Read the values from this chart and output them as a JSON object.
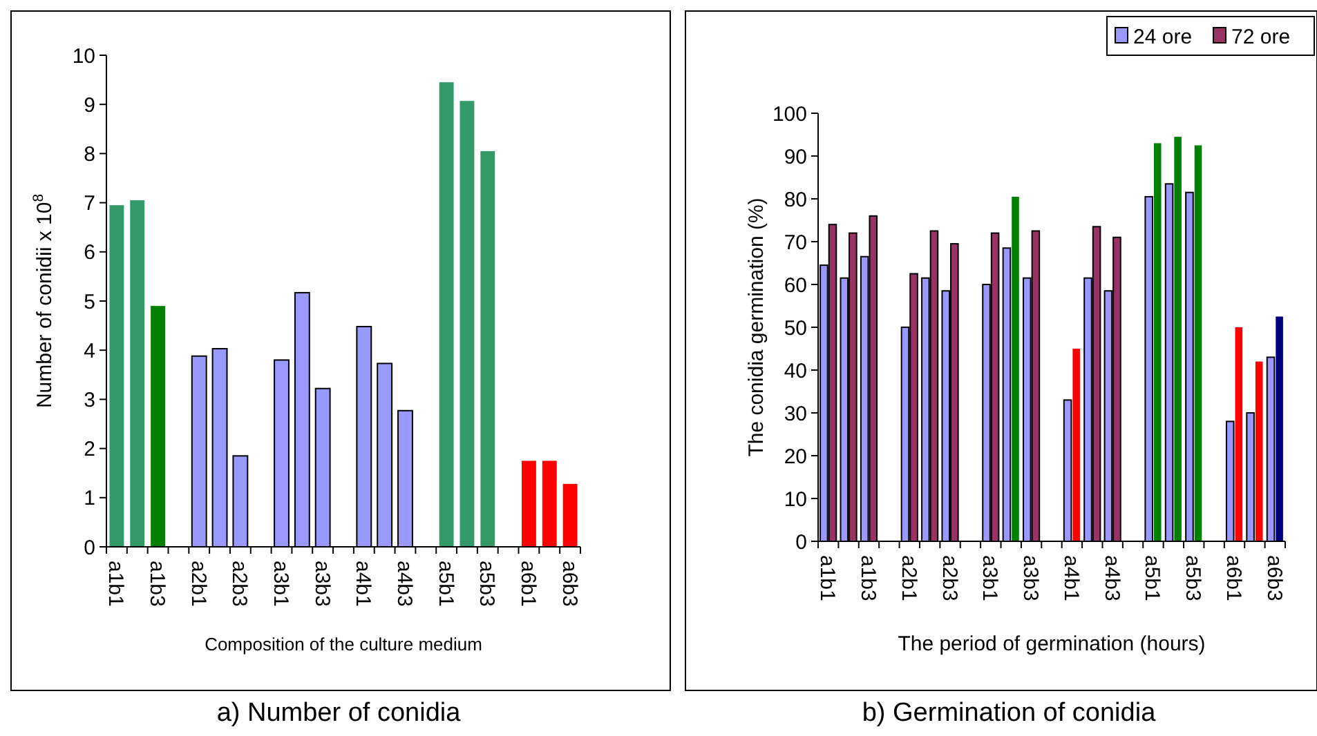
{
  "chart_data": [
    {
      "type": "bar",
      "title": "a) Number of conidia",
      "xlabel": "Composition of the culture medium",
      "ylabel": "Number of conidii x 10$^{8}$",
      "categories": [
        "a1b1",
        null,
        "a1b3",
        null,
        "a2b1",
        null,
        "a2b3",
        null,
        "a3b1",
        null,
        "a3b3",
        null,
        "a4b1",
        null,
        "a4b3",
        null,
        "a5b1",
        null,
        "a5b3",
        null,
        "a6b1",
        null,
        "a6b3"
      ],
      "values": [
        6.95,
        7.05,
        4.9,
        null,
        3.88,
        4.03,
        1.85,
        null,
        3.8,
        5.17,
        3.22,
        null,
        4.48,
        3.73,
        2.77,
        null,
        9.45,
        9.07,
        8.05,
        null,
        1.75,
        1.75,
        1.28
      ],
      "colors": [
        "#339966",
        "#339966",
        "#008000",
        null,
        "#9999ff",
        "#9999ff",
        "#9999ff",
        null,
        "#9999ff",
        "#9999ff",
        "#9999ff",
        null,
        "#9999ff",
        "#9999ff",
        "#9999ff",
        null,
        "#339966",
        "#339966",
        "#339966",
        null,
        "#ff0000",
        "#ff0000",
        "#ff0000"
      ],
      "ylim": [
        0,
        10
      ],
      "yticks": [
        0,
        1,
        2,
        3,
        4,
        5,
        6,
        7,
        8,
        9,
        10
      ],
      "grid": false,
      "legend": false
    },
    {
      "type": "bar",
      "title": "b) Germination of conidia",
      "xlabel": "The period of germination (hours)",
      "ylabel": "The conidia germination (%)",
      "categories": [
        "a1b1",
        null,
        "a1b3",
        null,
        "a2b1",
        null,
        "a2b3",
        null,
        "a3b1",
        null,
        "a3b3",
        null,
        "a4b1",
        null,
        "a4b3",
        null,
        "a5b1",
        null,
        "a5b3",
        null,
        "a6b1",
        null,
        "a6b3"
      ],
      "series": [
        {
          "name": "24 ore",
          "color": "#9999ff",
          "values": [
            64.5,
            61.5,
            66.5,
            null,
            50,
            61.5,
            58.5,
            null,
            60,
            68.5,
            61.5,
            null,
            33,
            61.5,
            58.5,
            null,
            80.5,
            83.5,
            81.5,
            null,
            28,
            30,
            43
          ]
        },
        {
          "name": "72 ore",
          "color": "#993366",
          "values": [
            74,
            72,
            76,
            null,
            62.5,
            72.5,
            69.5,
            null,
            72,
            80.5,
            72.5,
            null,
            45,
            73.5,
            71,
            null,
            93,
            94.5,
            92.5,
            null,
            50,
            42,
            52.5
          ],
          "colors": [
            "#993366",
            "#993366",
            "#993366",
            null,
            "#993366",
            "#993366",
            "#993366",
            null,
            "#993366",
            "#008000",
            "#993366",
            null,
            "#ff0000",
            "#993366",
            "#993366",
            null,
            "#008000",
            "#008000",
            "#008000",
            null,
            "#ff0000",
            "#ff0000",
            "#000080"
          ]
        }
      ],
      "ylim": [
        0,
        100
      ],
      "yticks": [
        0,
        10,
        20,
        30,
        40,
        50,
        60,
        70,
        80,
        90,
        100
      ],
      "grid": false,
      "legend": "top right"
    }
  ]
}
